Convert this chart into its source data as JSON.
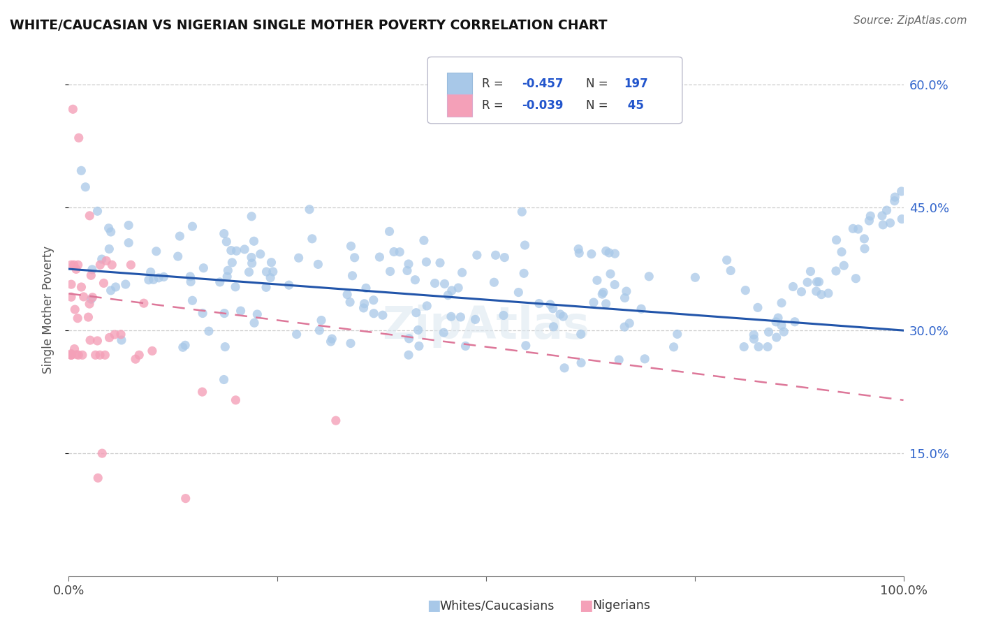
{
  "title": "WHITE/CAUCASIAN VS NIGERIAN SINGLE MOTHER POVERTY CORRELATION CHART",
  "source": "Source: ZipAtlas.com",
  "ylabel": "Single Mother Poverty",
  "yticks": [
    "15.0%",
    "30.0%",
    "45.0%",
    "60.0%"
  ],
  "ytick_vals": [
    0.15,
    0.3,
    0.45,
    0.6
  ],
  "xlim": [
    0.0,
    1.0
  ],
  "ylim": [
    0.0,
    0.65
  ],
  "blue_color": "#a8c8e8",
  "pink_color": "#f4a0b8",
  "blue_line_color": "#2255aa",
  "pink_line_color": "#dd7799",
  "watermark": "ZipAtlas",
  "legend_R_blue": "-0.457",
  "legend_N_blue": "197",
  "legend_R_pink": "-0.039",
  "legend_N_pink": " 45",
  "blue_trend_y0": 0.375,
  "blue_trend_y1": 0.3,
  "pink_trend_y0": 0.345,
  "pink_trend_y1": 0.215
}
